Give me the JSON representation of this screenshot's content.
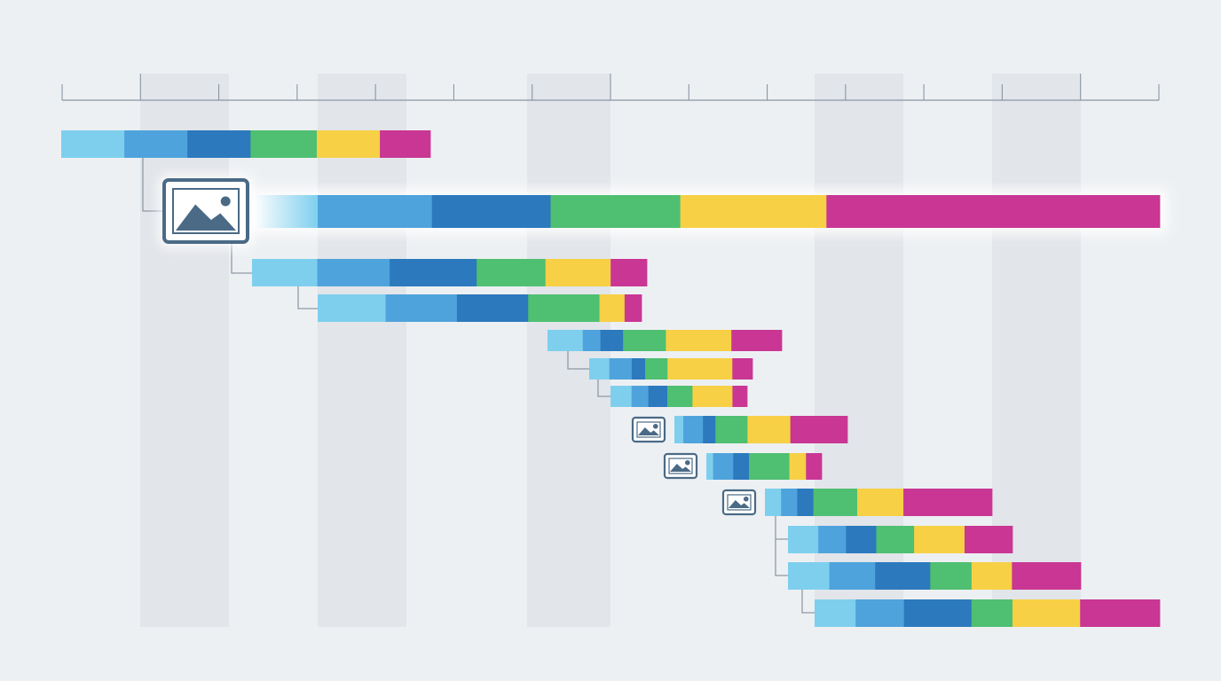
{
  "colors": {
    "background": "#edf0f3",
    "column_shade": "#dfe3e8",
    "axis": "#8a96a3",
    "connector": "#8f99a4",
    "icon": "#4a6a86",
    "segment_palette": [
      "#7ecfee",
      "#4fa3dc",
      "#2c79bd",
      "#4fbf71",
      "#f7d046",
      "#c93694"
    ]
  },
  "diagram": {
    "kind": "waterfall-timeline",
    "highlighted_row": 1,
    "rows": [
      {
        "id": "row-1",
        "level": 0,
        "icon": null,
        "segments": [
          1,
          1,
          1,
          1.05,
          1,
          0.8
        ]
      },
      {
        "id": "row-2",
        "level": 1,
        "icon": "image-icon",
        "segments": [
          0.7,
          1.25,
          1.3,
          1.42,
          1.6,
          3.65
        ]
      },
      {
        "id": "row-3",
        "level": 2,
        "icon": null,
        "segments": [
          0.9,
          1,
          1.2,
          0.95,
          0.9,
          0.5
        ]
      },
      {
        "id": "row-4",
        "level": 3,
        "icon": null,
        "segments": [
          1,
          1.05,
          1.05,
          1.05,
          0.37,
          0.25
        ]
      },
      {
        "id": "row-5",
        "level": 4,
        "icon": null,
        "segments": [
          0.7,
          0.35,
          0.45,
          0.85,
          1.3,
          1
        ]
      },
      {
        "id": "row-6",
        "level": 5,
        "icon": null,
        "segments": [
          0.45,
          0.5,
          0.3,
          0.5,
          1.45,
          0.45
        ]
      },
      {
        "id": "row-7",
        "level": 6,
        "icon": null,
        "segments": [
          0.5,
          0.4,
          0.45,
          0.6,
          0.95,
          0.35
        ]
      },
      {
        "id": "row-8",
        "level": 7,
        "icon": "image-icon",
        "segments": [
          0.25,
          0.55,
          0.35,
          0.9,
          1.2,
          1.6
        ]
      },
      {
        "id": "row-9",
        "level": 8,
        "icon": "image-icon",
        "segments": [
          0.15,
          0.45,
          0.35,
          0.9,
          0.37,
          0.35
        ]
      },
      {
        "id": "row-10",
        "level": 9,
        "icon": "image-icon",
        "segments": [
          0.35,
          0.35,
          0.35,
          0.95,
          1,
          1.92
        ]
      },
      {
        "id": "row-11",
        "level": 10,
        "icon": null,
        "segments": [
          0.6,
          0.55,
          0.6,
          0.75,
          1,
          0.95
        ]
      },
      {
        "id": "row-12",
        "level": 10,
        "icon": null,
        "segments": [
          0.9,
          1,
          1.2,
          0.9,
          0.88,
          1.5
        ]
      },
      {
        "id": "row-13",
        "level": 11,
        "icon": null,
        "segments": [
          0.85,
          1,
          1.4,
          0.85,
          1.4,
          1.65
        ]
      }
    ]
  }
}
